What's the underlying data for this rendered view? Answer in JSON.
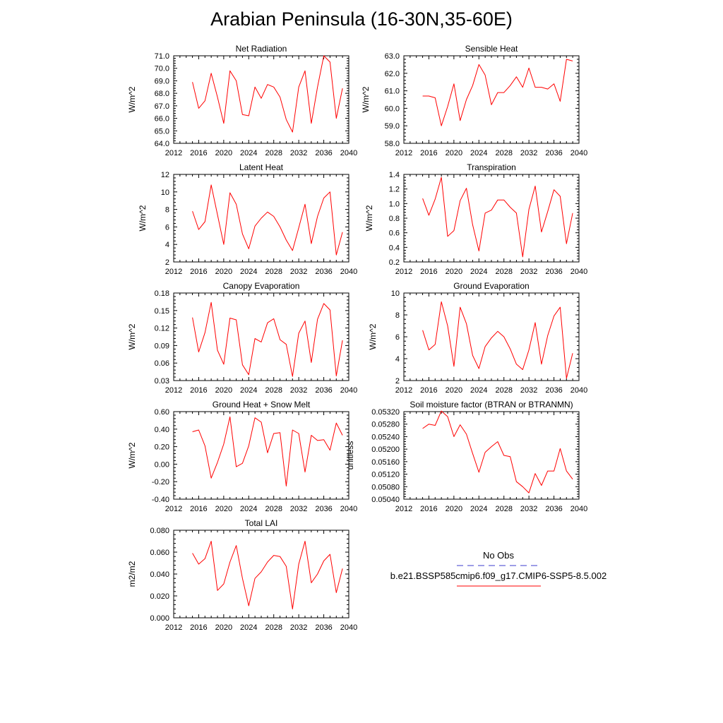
{
  "page": {
    "title": "Arabian Peninsula (16-30N,35-60E)"
  },
  "chart_data": [
    {
      "type": "line",
      "title": "Net Radiation",
      "ylabel": "W/m^2",
      "xlabel": "",
      "xlim": [
        2012,
        2040
      ],
      "xticks": [
        2012,
        2016,
        2020,
        2024,
        2028,
        2032,
        2036,
        2040
      ],
      "ylim": [
        64.0,
        71.0
      ],
      "yticks": [
        64.0,
        65.0,
        66.0,
        67.0,
        68.0,
        69.0,
        70.0,
        71.0
      ],
      "ytick_decimals": 1,
      "grid": false,
      "series": [
        {
          "name": "b.e21.BSSP585cmip6.f09_g17.CMIP6-SSP5-8.5.002",
          "color": "#ff0000",
          "x": [
            2015,
            2016,
            2017,
            2018,
            2019,
            2020,
            2021,
            2022,
            2023,
            2024,
            2025,
            2026,
            2027,
            2028,
            2029,
            2030,
            2031,
            2032,
            2033,
            2034,
            2035,
            2036,
            2037,
            2038,
            2039
          ],
          "y": [
            68.9,
            66.8,
            67.4,
            69.6,
            67.7,
            65.6,
            69.8,
            69.0,
            66.3,
            66.2,
            68.5,
            67.6,
            68.7,
            68.5,
            67.7,
            65.9,
            64.9,
            68.5,
            69.8,
            65.6,
            68.5,
            71.0,
            70.5,
            66.0,
            68.4
          ]
        }
      ]
    },
    {
      "type": "line",
      "title": "Sensible Heat",
      "ylabel": "W/m^2",
      "xlabel": "",
      "xlim": [
        2012,
        2040
      ],
      "xticks": [
        2012,
        2016,
        2020,
        2024,
        2028,
        2032,
        2036,
        2040
      ],
      "ylim": [
        58.0,
        63.0
      ],
      "yticks": [
        58.0,
        59.0,
        60.0,
        61.0,
        62.0,
        63.0
      ],
      "ytick_decimals": 1,
      "grid": false,
      "series": [
        {
          "name": "b.e21.BSSP585cmip6.f09_g17.CMIP6-SSP5-8.5.002",
          "color": "#ff0000",
          "x": [
            2015,
            2016,
            2017,
            2018,
            2019,
            2020,
            2021,
            2022,
            2023,
            2024,
            2025,
            2026,
            2027,
            2028,
            2029,
            2030,
            2031,
            2032,
            2033,
            2034,
            2035,
            2036,
            2037,
            2038,
            2039
          ],
          "y": [
            60.7,
            60.7,
            60.6,
            59.0,
            60.1,
            61.4,
            59.3,
            60.5,
            61.3,
            62.5,
            61.9,
            60.2,
            60.9,
            60.9,
            61.3,
            61.8,
            61.2,
            62.3,
            61.2,
            61.2,
            61.1,
            61.4,
            60.4,
            62.8,
            62.7
          ]
        }
      ]
    },
    {
      "type": "line",
      "title": "Latent Heat",
      "ylabel": "W/m^2",
      "xlabel": "",
      "xlim": [
        2012,
        2040
      ],
      "xticks": [
        2012,
        2016,
        2020,
        2024,
        2028,
        2032,
        2036,
        2040
      ],
      "ylim": [
        2,
        12
      ],
      "yticks": [
        2,
        4,
        6,
        8,
        10,
        12
      ],
      "ytick_decimals": 0,
      "grid": false,
      "series": [
        {
          "name": "b.e21.BSSP585cmip6.f09_g17.CMIP6-SSP5-8.5.002",
          "color": "#ff0000",
          "x": [
            2015,
            2016,
            2017,
            2018,
            2019,
            2020,
            2021,
            2022,
            2023,
            2024,
            2025,
            2026,
            2027,
            2028,
            2029,
            2030,
            2031,
            2032,
            2033,
            2034,
            2035,
            2036,
            2037,
            2038,
            2039
          ],
          "y": [
            7.8,
            5.7,
            6.6,
            10.8,
            7.4,
            4.0,
            9.9,
            8.6,
            5.2,
            3.5,
            6.1,
            7.0,
            7.7,
            7.2,
            6.0,
            4.5,
            3.3,
            5.9,
            8.6,
            4.1,
            7.2,
            9.3,
            10.0,
            2.8,
            5.4
          ]
        }
      ]
    },
    {
      "type": "line",
      "title": "Transpiration",
      "ylabel": "W/m^2",
      "xlabel": "",
      "xlim": [
        2012,
        2040
      ],
      "xticks": [
        2012,
        2016,
        2020,
        2024,
        2028,
        2032,
        2036,
        2040
      ],
      "ylim": [
        0.2,
        1.4
      ],
      "yticks": [
        0.2,
        0.4,
        0.6,
        0.8,
        1.0,
        1.2,
        1.4
      ],
      "ytick_decimals": 1,
      "grid": false,
      "series": [
        {
          "name": "b.e21.BSSP585cmip6.f09_g17.CMIP6-SSP5-8.5.002",
          "color": "#ff0000",
          "x": [
            2015,
            2016,
            2017,
            2018,
            2019,
            2020,
            2021,
            2022,
            2023,
            2024,
            2025,
            2026,
            2027,
            2028,
            2029,
            2030,
            2031,
            2032,
            2033,
            2034,
            2035,
            2036,
            2037,
            2038,
            2039
          ],
          "y": [
            1.07,
            0.84,
            1.06,
            1.36,
            0.55,
            0.63,
            1.04,
            1.21,
            0.71,
            0.35,
            0.87,
            0.91,
            1.05,
            1.05,
            0.95,
            0.87,
            0.27,
            0.92,
            1.24,
            0.61,
            0.89,
            1.19,
            1.1,
            0.45,
            0.87
          ]
        }
      ]
    },
    {
      "type": "line",
      "title": "Canopy Evaporation",
      "ylabel": "W/m^2",
      "xlabel": "",
      "xlim": [
        2012,
        2040
      ],
      "xticks": [
        2012,
        2016,
        2020,
        2024,
        2028,
        2032,
        2036,
        2040
      ],
      "ylim": [
        0.03,
        0.18
      ],
      "yticks": [
        0.03,
        0.06,
        0.09,
        0.12,
        0.15,
        0.18
      ],
      "ytick_decimals": 2,
      "grid": false,
      "series": [
        {
          "name": "b.e21.BSSP585cmip6.f09_g17.CMIP6-SSP5-8.5.002",
          "color": "#ff0000",
          "x": [
            2015,
            2016,
            2017,
            2018,
            2019,
            2020,
            2021,
            2022,
            2023,
            2024,
            2025,
            2026,
            2027,
            2028,
            2029,
            2030,
            2031,
            2032,
            2033,
            2034,
            2035,
            2036,
            2037,
            2038,
            2039
          ],
          "y": [
            0.138,
            0.079,
            0.112,
            0.164,
            0.082,
            0.058,
            0.137,
            0.134,
            0.057,
            0.04,
            0.102,
            0.096,
            0.129,
            0.136,
            0.1,
            0.092,
            0.037,
            0.111,
            0.132,
            0.061,
            0.135,
            0.162,
            0.151,
            0.038,
            0.099
          ]
        }
      ]
    },
    {
      "type": "line",
      "title": "Ground Evaporation",
      "ylabel": "W/m^2",
      "xlabel": "",
      "xlim": [
        2012,
        2040
      ],
      "xticks": [
        2012,
        2016,
        2020,
        2024,
        2028,
        2032,
        2036,
        2040
      ],
      "ylim": [
        2,
        10
      ],
      "yticks": [
        2,
        4,
        6,
        8,
        10
      ],
      "ytick_decimals": 0,
      "grid": false,
      "series": [
        {
          "name": "b.e21.BSSP585cmip6.f09_g17.CMIP6-SSP5-8.5.002",
          "color": "#ff0000",
          "x": [
            2015,
            2016,
            2017,
            2018,
            2019,
            2020,
            2021,
            2022,
            2023,
            2024,
            2025,
            2026,
            2027,
            2028,
            2029,
            2030,
            2031,
            2032,
            2033,
            2034,
            2035,
            2036,
            2037,
            2038,
            2039
          ],
          "y": [
            6.6,
            4.8,
            5.3,
            9.2,
            7.0,
            3.3,
            8.7,
            7.2,
            4.3,
            3.1,
            5.1,
            5.9,
            6.5,
            6.0,
            4.9,
            3.5,
            3.0,
            4.8,
            7.3,
            3.5,
            6.1,
            7.9,
            8.7,
            2.2,
            4.5
          ]
        }
      ]
    },
    {
      "type": "line",
      "title": "Ground Heat + Snow Melt",
      "ylabel": "W/m^2",
      "xlabel": "",
      "xlim": [
        2012,
        2040
      ],
      "xticks": [
        2012,
        2016,
        2020,
        2024,
        2028,
        2032,
        2036,
        2040
      ],
      "ylim": [
        -0.4,
        0.6
      ],
      "yticks": [
        -0.4,
        -0.2,
        0.0,
        0.2,
        0.4,
        0.6
      ],
      "ytick_decimals": 2,
      "grid": false,
      "series": [
        {
          "name": "b.e21.BSSP585cmip6.f09_g17.CMIP6-SSP5-8.5.002",
          "color": "#ff0000",
          "x": [
            2015,
            2016,
            2017,
            2018,
            2019,
            2020,
            2021,
            2022,
            2023,
            2024,
            2025,
            2026,
            2027,
            2028,
            2029,
            2030,
            2031,
            2032,
            2033,
            2034,
            2035,
            2036,
            2037,
            2038,
            2039
          ],
          "y": [
            0.37,
            0.39,
            0.21,
            -0.16,
            0.02,
            0.23,
            0.54,
            -0.03,
            0.01,
            0.21,
            0.53,
            0.48,
            0.13,
            0.35,
            0.36,
            -0.25,
            0.39,
            0.35,
            -0.09,
            0.33,
            0.27,
            0.28,
            0.16,
            0.47,
            0.33
          ]
        }
      ]
    },
    {
      "type": "line",
      "title": "Soil moisture factor (BTRAN or BTRANMN)",
      "ylabel": "unitless",
      "xlabel": "",
      "xlim": [
        2012,
        2040
      ],
      "xticks": [
        2012,
        2016,
        2020,
        2024,
        2028,
        2032,
        2036,
        2040
      ],
      "ylim": [
        0.0504,
        0.0532
      ],
      "yticks": [
        0.0504,
        0.0508,
        0.0512,
        0.0516,
        0.052,
        0.0524,
        0.0528,
        0.0532
      ],
      "ytick_decimals": 5,
      "grid": false,
      "series": [
        {
          "name": "b.e21.BSSP585cmip6.f09_g17.CMIP6-SSP5-8.5.002",
          "color": "#ff0000",
          "x": [
            2015,
            2016,
            2017,
            2018,
            2019,
            2020,
            2021,
            2022,
            2023,
            2024,
            2025,
            2026,
            2027,
            2028,
            2029,
            2030,
            2031,
            2032,
            2033,
            2034,
            2035,
            2036,
            2037,
            2038,
            2039
          ],
          "y": [
            0.05266,
            0.0528,
            0.05276,
            0.05322,
            0.05304,
            0.0524,
            0.05278,
            0.05248,
            0.05186,
            0.05126,
            0.0519,
            0.05208,
            0.05224,
            0.0518,
            0.05176,
            0.05096,
            0.0508,
            0.0506,
            0.05122,
            0.05084,
            0.0513,
            0.0513,
            0.05202,
            0.0513,
            0.05104
          ]
        }
      ]
    },
    {
      "type": "line",
      "title": "Total LAI",
      "ylabel": "m2/m2",
      "xlabel": "",
      "xlim": [
        2012,
        2040
      ],
      "xticks": [
        2012,
        2016,
        2020,
        2024,
        2028,
        2032,
        2036,
        2040
      ],
      "ylim": [
        0.0,
        0.08
      ],
      "yticks": [
        0.0,
        0.02,
        0.04,
        0.06,
        0.08
      ],
      "ytick_decimals": 3,
      "grid": false,
      "series": [
        {
          "name": "b.e21.BSSP585cmip6.f09_g17.CMIP6-SSP5-8.5.002",
          "color": "#ff0000",
          "x": [
            2015,
            2016,
            2017,
            2018,
            2019,
            2020,
            2021,
            2022,
            2023,
            2024,
            2025,
            2026,
            2027,
            2028,
            2029,
            2030,
            2031,
            2032,
            2033,
            2034,
            2035,
            2036,
            2037,
            2038,
            2039
          ],
          "y": [
            0.059,
            0.049,
            0.054,
            0.07,
            0.025,
            0.031,
            0.051,
            0.066,
            0.036,
            0.011,
            0.036,
            0.042,
            0.051,
            0.057,
            0.056,
            0.047,
            0.008,
            0.049,
            0.07,
            0.032,
            0.04,
            0.052,
            0.058,
            0.023,
            0.045
          ]
        }
      ]
    }
  ],
  "legend": {
    "entries": [
      {
        "label": "No Obs",
        "color": "#3b3bcf",
        "style": "dashed"
      },
      {
        "label": "b.e21.BSSP585cmip6.f09_g17.CMIP6-SSP5-8.5.002",
        "color": "#ff0000",
        "style": "solid"
      }
    ]
  }
}
